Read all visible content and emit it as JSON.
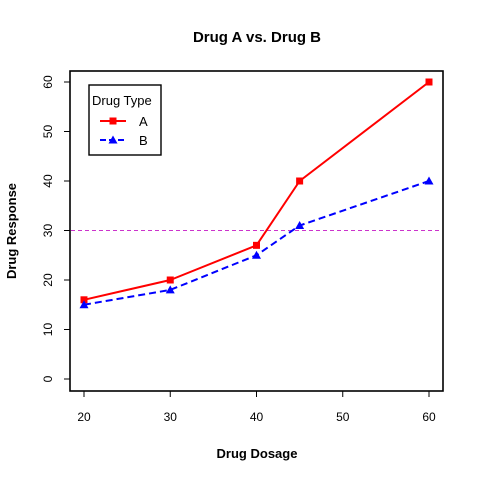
{
  "chart_data": {
    "type": "line",
    "title": "Drug A vs. Drug B",
    "xlabel": "Drug Dosage",
    "ylabel": "Drug Response",
    "x": [
      20,
      30,
      40,
      45,
      60
    ],
    "xlim": [
      20,
      60
    ],
    "ylim": [
      0,
      60
    ],
    "xticks": [
      "20",
      "30",
      "40",
      "50",
      "60"
    ],
    "yticks": [
      "0",
      "10",
      "20",
      "30",
      "40",
      "50",
      "60"
    ],
    "series": [
      {
        "name": "A",
        "values": [
          16,
          20,
          27,
          40,
          60
        ],
        "color": "#ff0000",
        "line": "solid",
        "marker": "square"
      },
      {
        "name": "B",
        "values": [
          15,
          18,
          25,
          31,
          40
        ],
        "color": "#0000ff",
        "line": "dashed",
        "marker": "triangle"
      }
    ],
    "reference_line": {
      "y": 30,
      "color": "#cc33cc",
      "line": "dashed"
    },
    "legend": {
      "title": "Drug Type",
      "placement": "top-left"
    },
    "grid": false
  }
}
